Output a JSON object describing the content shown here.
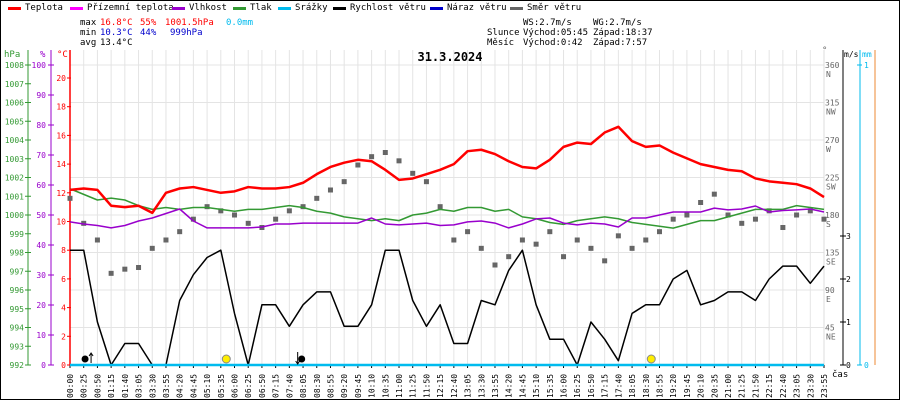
{
  "legend": [
    {
      "label": "Teplota",
      "color": "#ff0000"
    },
    {
      "label": "Přízemní teplota",
      "color": "#ff00ff"
    },
    {
      "label": "Vlhkost",
      "color": "#9900cc"
    },
    {
      "label": "Tlak",
      "color": "#339933"
    },
    {
      "label": "Srážky",
      "color": "#00bbee"
    },
    {
      "label": "Rychlost větru",
      "color": "#000000"
    },
    {
      "label": "Náraz větru",
      "color": "#0000cc"
    },
    {
      "label": "Směr větru",
      "color": "#666666"
    }
  ],
  "stats": {
    "max_label": "max",
    "max_temp": "16.8°C",
    "max_hum": "55%",
    "max_press": "1001.5hPa",
    "max_rain": "0.0mm",
    "min_label": "min",
    "min_temp": "10.3°C",
    "min_hum": "44%",
    "min_press": "999hPa",
    "avg_label": "avg",
    "avg_temp": "13.4°C",
    "ws": "WS:2.7m/s",
    "wg": "WG:2.7m/s",
    "sun_label": "Slunce",
    "sun_rise": "Východ:05:45",
    "sun_set": "Západ:18:37",
    "moon_label": "Měsíc",
    "moon_rise": "Východ:0:42",
    "moon_set": "Západ:7:57"
  },
  "chart_data": {
    "type": "line",
    "title": "31.3.2024",
    "xlabel": "čas",
    "axes": {
      "pressure": {
        "unit": "hPa",
        "range": [
          992,
          1008
        ],
        "ticks": [
          992,
          993,
          994,
          995,
          996,
          997,
          998,
          999,
          1000,
          1001,
          1002,
          1003,
          1004,
          1005,
          1006,
          1007,
          1008
        ]
      },
      "humidity": {
        "unit": "%",
        "range": [
          0,
          100
        ],
        "ticks": [
          0,
          10,
          20,
          30,
          40,
          50,
          60,
          70,
          80,
          90,
          100
        ]
      },
      "temperature": {
        "unit": "°C",
        "range": [
          0,
          21
        ],
        "ticks": [
          0,
          2,
          4,
          6,
          8,
          10,
          12,
          14,
          16,
          18,
          20
        ]
      },
      "direction": {
        "unit": "°",
        "range": [
          0,
          360
        ],
        "ticks": [
          {
            "v": 0,
            "c": ""
          },
          {
            "v": 45,
            "c": "NE"
          },
          {
            "v": 90,
            "c": "E"
          },
          {
            "v": 135,
            "c": "SE"
          },
          {
            "v": 180,
            "c": "S"
          },
          {
            "v": 225,
            "c": "SW"
          },
          {
            "v": 270,
            "c": "W"
          },
          {
            "v": 315,
            "c": "NW"
          },
          {
            "v": 360,
            "c": "N"
          }
        ]
      },
      "wind": {
        "unit": "m/s",
        "range": [
          0,
          3.5
        ],
        "ticks": [
          0,
          1,
          2,
          3
        ]
      },
      "rain": {
        "unit": "mm",
        "range": [
          0,
          1
        ],
        "ticks": [
          0,
          1
        ]
      }
    },
    "x": [
      "00:00",
      "00:25",
      "00:50",
      "01:15",
      "01:40",
      "03:05",
      "03:30",
      "03:55",
      "04:20",
      "04:45",
      "05:10",
      "05:35",
      "06:00",
      "06:25",
      "06:50",
      "07:15",
      "07:40",
      "08:05",
      "08:30",
      "08:55",
      "09:20",
      "09:45",
      "10:10",
      "10:35",
      "11:00",
      "11:25",
      "11:50",
      "12:15",
      "12:40",
      "13:05",
      "13:30",
      "13:55",
      "14:20",
      "14:45",
      "15:10",
      "15:35",
      "16:00",
      "16:25",
      "16:50",
      "17:15",
      "17:40",
      "18:05",
      "18:30",
      "18:55",
      "19:20",
      "19:45",
      "20:10",
      "20:35",
      "21:00",
      "21:25",
      "21:50",
      "22:15",
      "22:40",
      "23:05",
      "23:30",
      "23:55"
    ],
    "series": [
      {
        "name": "Teplota",
        "unit": "°C",
        "values": [
          12.2,
          12.3,
          12.2,
          11.1,
          11.0,
          11.1,
          10.6,
          12.0,
          12.3,
          12.4,
          12.2,
          12.0,
          12.1,
          12.4,
          12.3,
          12.3,
          12.4,
          12.7,
          13.3,
          13.8,
          14.1,
          14.3,
          14.2,
          13.6,
          12.9,
          13.0,
          13.3,
          13.6,
          14.0,
          14.9,
          15.0,
          14.7,
          14.2,
          13.8,
          13.7,
          14.3,
          15.2,
          15.5,
          15.4,
          16.2,
          16.6,
          15.6,
          15.2,
          15.3,
          14.8,
          14.4,
          14.0,
          13.8,
          13.6,
          13.5,
          13.0,
          12.8,
          12.7,
          12.6,
          12.3,
          11.7
        ]
      },
      {
        "name": "Vlhkost",
        "unit": "%",
        "values": [
          47.7,
          47,
          46.5,
          45.7,
          46.5,
          48,
          49,
          50.5,
          52,
          48,
          45.7,
          45.7,
          45.7,
          45.7,
          46,
          47,
          47,
          47.3,
          47.3,
          47.3,
          47.3,
          47.3,
          49,
          47,
          46.7,
          47,
          47.3,
          46.5,
          46.7,
          47.7,
          48,
          47.3,
          45.7,
          47,
          48.7,
          49,
          47.3,
          46.7,
          47.3,
          47,
          46,
          49,
          49,
          50,
          51,
          51,
          51,
          52.3,
          51.7,
          52,
          53,
          51,
          51.5,
          51.7,
          52,
          51
        ]
      },
      {
        "name": "Tlak",
        "unit": "hPa",
        "values": [
          1001.4,
          1001.1,
          1000.8,
          1000.9,
          1000.8,
          1000.5,
          1000.3,
          1000.4,
          1000.3,
          1000.4,
          1000.4,
          1000.3,
          1000.2,
          1000.3,
          1000.3,
          1000.4,
          1000.5,
          1000.4,
          1000.2,
          1000.1,
          999.9,
          999.8,
          999.7,
          999.8,
          999.7,
          1000.0,
          1000.1,
          1000.3,
          1000.2,
          1000.4,
          1000.4,
          1000.2,
          1000.3,
          999.9,
          999.8,
          999.6,
          999.5,
          999.7,
          999.8,
          999.9,
          999.8,
          999.6,
          999.5,
          999.4,
          999.3,
          999.5,
          999.7,
          999.7,
          999.9,
          1000.1,
          1000.3,
          1000.3,
          1000.3,
          1000.5,
          1000.4,
          1000.3
        ]
      },
      {
        "name": "Srážky",
        "unit": "mm",
        "values": [
          0,
          0,
          0,
          0,
          0,
          0,
          0,
          0,
          0,
          0,
          0,
          0,
          0,
          0,
          0,
          0,
          0,
          0,
          0,
          0,
          0,
          0,
          0,
          0,
          0,
          0,
          0,
          0,
          0,
          0,
          0,
          0,
          0,
          0,
          0,
          0,
          0,
          0,
          0,
          0,
          0,
          0,
          0,
          0,
          0,
          0,
          0,
          0,
          0,
          0,
          0,
          0,
          0,
          0,
          0,
          0
        ]
      },
      {
        "name": "Rychlost větru",
        "unit": "m/s",
        "values": [
          2.67,
          2.67,
          1.0,
          0,
          0.5,
          0.5,
          0,
          0,
          1.5,
          2.1,
          2.5,
          2.67,
          1.2,
          0,
          1.4,
          1.4,
          0.9,
          1.4,
          1.7,
          1.7,
          0.9,
          0.9,
          1.4,
          2.67,
          2.67,
          1.5,
          0.9,
          1.4,
          0.5,
          0.5,
          1.5,
          1.4,
          2.2,
          2.67,
          1.4,
          0.6,
          0.6,
          0,
          1.0,
          0.6,
          0.1,
          1.2,
          1.4,
          1.4,
          2.0,
          2.2,
          1.4,
          1.5,
          1.7,
          1.7,
          1.5,
          2.0,
          2.3,
          2.3,
          1.9,
          2.3
        ]
      },
      {
        "name": "Směr větru",
        "unit": "°",
        "values": [
          200,
          170,
          150,
          110,
          115,
          117,
          140,
          150,
          160,
          175,
          190,
          185,
          180,
          170,
          165,
          175,
          185,
          190,
          200,
          210,
          220,
          240,
          250,
          255,
          245,
          230,
          220,
          190,
          150,
          160,
          140,
          120,
          130,
          150,
          145,
          160,
          130,
          150,
          140,
          125,
          155,
          140,
          150,
          160,
          175,
          180,
          195,
          205,
          180,
          170,
          175,
          185,
          165,
          180,
          185,
          175
        ]
      }
    ],
    "events": [
      {
        "type": "moonrise",
        "time": "0:42",
        "pos": 1.1
      },
      {
        "type": "sunrise",
        "time": "05:45",
        "pos": 11.4
      },
      {
        "type": "moonset",
        "time": "7:57",
        "pos": 16.9
      },
      {
        "type": "sunset",
        "time": "18:37",
        "pos": 42.4
      }
    ]
  }
}
